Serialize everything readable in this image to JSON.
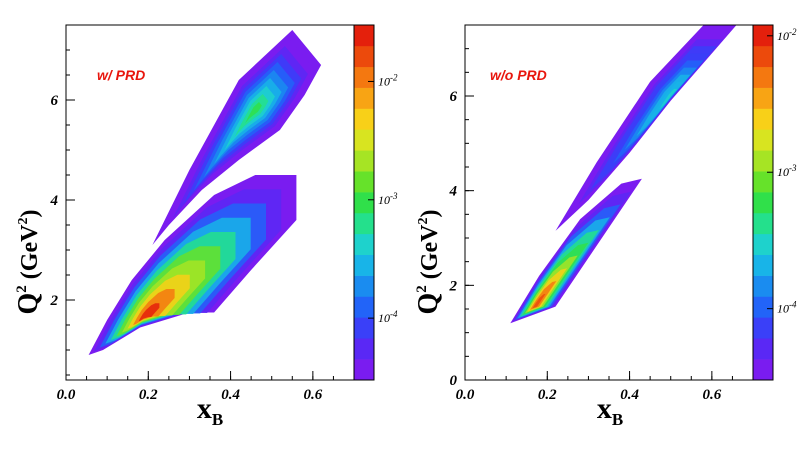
{
  "chart_data": [
    {
      "type": "heatmap",
      "panel": "left",
      "annotation": "w/ PRD",
      "xlabel": "x",
      "xlabel_sub": "B",
      "ylabel_main": "Q",
      "ylabel_sup": "2",
      "ylabel_rest": " (GeV",
      "ylabel_unit_sup": "2",
      "ylabel_close": ")",
      "xlim": [
        0.0,
        0.7
      ],
      "ylim": [
        0.4,
        7.5
      ],
      "x_ticks": [
        0.0,
        0.2,
        0.4,
        0.6
      ],
      "x_tick_labels": [
        "0.0",
        "0.2",
        "0.4",
        "0.6"
      ],
      "y_ticks": [
        2,
        4,
        6
      ],
      "y_tick_labels": [
        "2",
        "4",
        "6"
      ],
      "z_scale": "log",
      "zlim": [
        3e-05,
        0.03
      ],
      "colorbar_ticks": [
        {
          "base": "10",
          "exp": "-4",
          "value": 0.0001
        },
        {
          "base": "10",
          "exp": "-3",
          "value": 0.001
        },
        {
          "base": "10",
          "exp": "-2",
          "value": 0.01
        }
      ],
      "regions": [
        {
          "name": "upper band",
          "polygon": [
            [
              0.21,
              3.1
            ],
            [
              0.3,
              4.6
            ],
            [
              0.42,
              6.4
            ],
            [
              0.55,
              7.4
            ],
            [
              0.62,
              6.7
            ],
            [
              0.58,
              6.1
            ],
            [
              0.52,
              5.4
            ],
            [
              0.42,
              4.8
            ],
            [
              0.33,
              4.2
            ],
            [
              0.25,
              3.5
            ]
          ],
          "peak": [
            0.46,
            5.8
          ],
          "peak_density": 0.0008
        },
        {
          "name": "lower band",
          "polygon": [
            [
              0.055,
              0.9
            ],
            [
              0.09,
              1.0
            ],
            [
              0.18,
              1.45
            ],
            [
              0.3,
              1.75
            ],
            [
              0.36,
              1.75
            ],
            [
              0.45,
              2.6
            ],
            [
              0.56,
              3.6
            ],
            [
              0.56,
              4.5
            ],
            [
              0.46,
              4.5
            ],
            [
              0.36,
              4.1
            ],
            [
              0.24,
              3.2
            ],
            [
              0.16,
              2.4
            ],
            [
              0.1,
              1.6
            ]
          ],
          "peak": [
            0.19,
            1.65
          ],
          "peak_density": 0.022
        }
      ]
    },
    {
      "type": "heatmap",
      "panel": "right",
      "annotation": "w/o PRD",
      "xlabel": "x",
      "xlabel_sub": "B",
      "ylabel_main": "Q",
      "ylabel_sup": "2",
      "ylabel_rest": " (GeV",
      "ylabel_unit_sup": "2",
      "ylabel_close": ")",
      "xlim": [
        0.0,
        0.7
      ],
      "ylim": [
        0.0,
        7.5
      ],
      "x_ticks": [
        0.0,
        0.2,
        0.4,
        0.6
      ],
      "x_tick_labels": [
        "0.0",
        "0.2",
        "0.4",
        "0.6"
      ],
      "y_ticks": [
        0,
        2,
        4,
        6
      ],
      "y_tick_labels": [
        "0",
        "2",
        "4",
        "6"
      ],
      "z_scale": "log",
      "zlim": [
        3e-05,
        0.012
      ],
      "colorbar_ticks": [
        {
          "base": "10",
          "exp": "-4",
          "value": 0.0001
        },
        {
          "base": "10",
          "exp": "-3",
          "value": 0.001
        },
        {
          "base": "10",
          "exp": "-2",
          "value": 0.01
        }
      ],
      "regions": [
        {
          "name": "upper band",
          "polygon": [
            [
              0.22,
              3.15
            ],
            [
              0.32,
              4.6
            ],
            [
              0.45,
              6.3
            ],
            [
              0.58,
              7.5
            ],
            [
              0.66,
              7.5
            ],
            [
              0.6,
              6.9
            ],
            [
              0.5,
              5.9
            ],
            [
              0.4,
              4.8
            ],
            [
              0.3,
              3.8
            ]
          ],
          "peak": [
            0.5,
            6.0
          ],
          "peak_density": 0.0003
        },
        {
          "name": "lower band",
          "polygon": [
            [
              0.11,
              1.2
            ],
            [
              0.22,
              1.55
            ],
            [
              0.43,
              4.25
            ],
            [
              0.38,
              4.15
            ],
            [
              0.28,
              3.4
            ],
            [
              0.18,
              2.2
            ]
          ],
          "peak": [
            0.17,
            1.55
          ],
          "peak_density": 0.008
        }
      ]
    }
  ]
}
